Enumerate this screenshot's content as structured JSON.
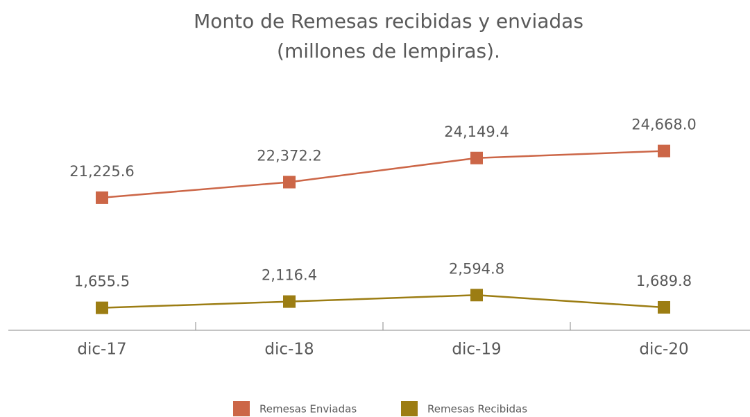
{
  "chart_data": {
    "type": "line",
    "title": [
      "Monto de Remesas recibidas y enviadas",
      "(millones de lempiras)."
    ],
    "categories": [
      "dic-17",
      "dic-18",
      "dic-19",
      "dic-20"
    ],
    "series": [
      {
        "name": "Remesas Enviadas",
        "color": "#cc6647",
        "values": [
          21225.6,
          22372.2,
          24149.4,
          24668.0
        ],
        "value_labels": [
          "21,225.6",
          "22,372.2",
          "24,149.4",
          "24,668.0"
        ]
      },
      {
        "name": "Remesas Recibidas",
        "color": "#9c7d13",
        "axis": "y2",
        "values": [
          1655.5,
          2116.4,
          2594.8,
          1689.8
        ],
        "value_labels": [
          "1,655.5",
          "2,116.4",
          "2,594.8",
          "1,689.8"
        ]
      }
    ],
    "ylim": [
      11450,
      29150
    ],
    "y2lim": [
      0,
      17700
    ],
    "legend": "bottom"
  }
}
